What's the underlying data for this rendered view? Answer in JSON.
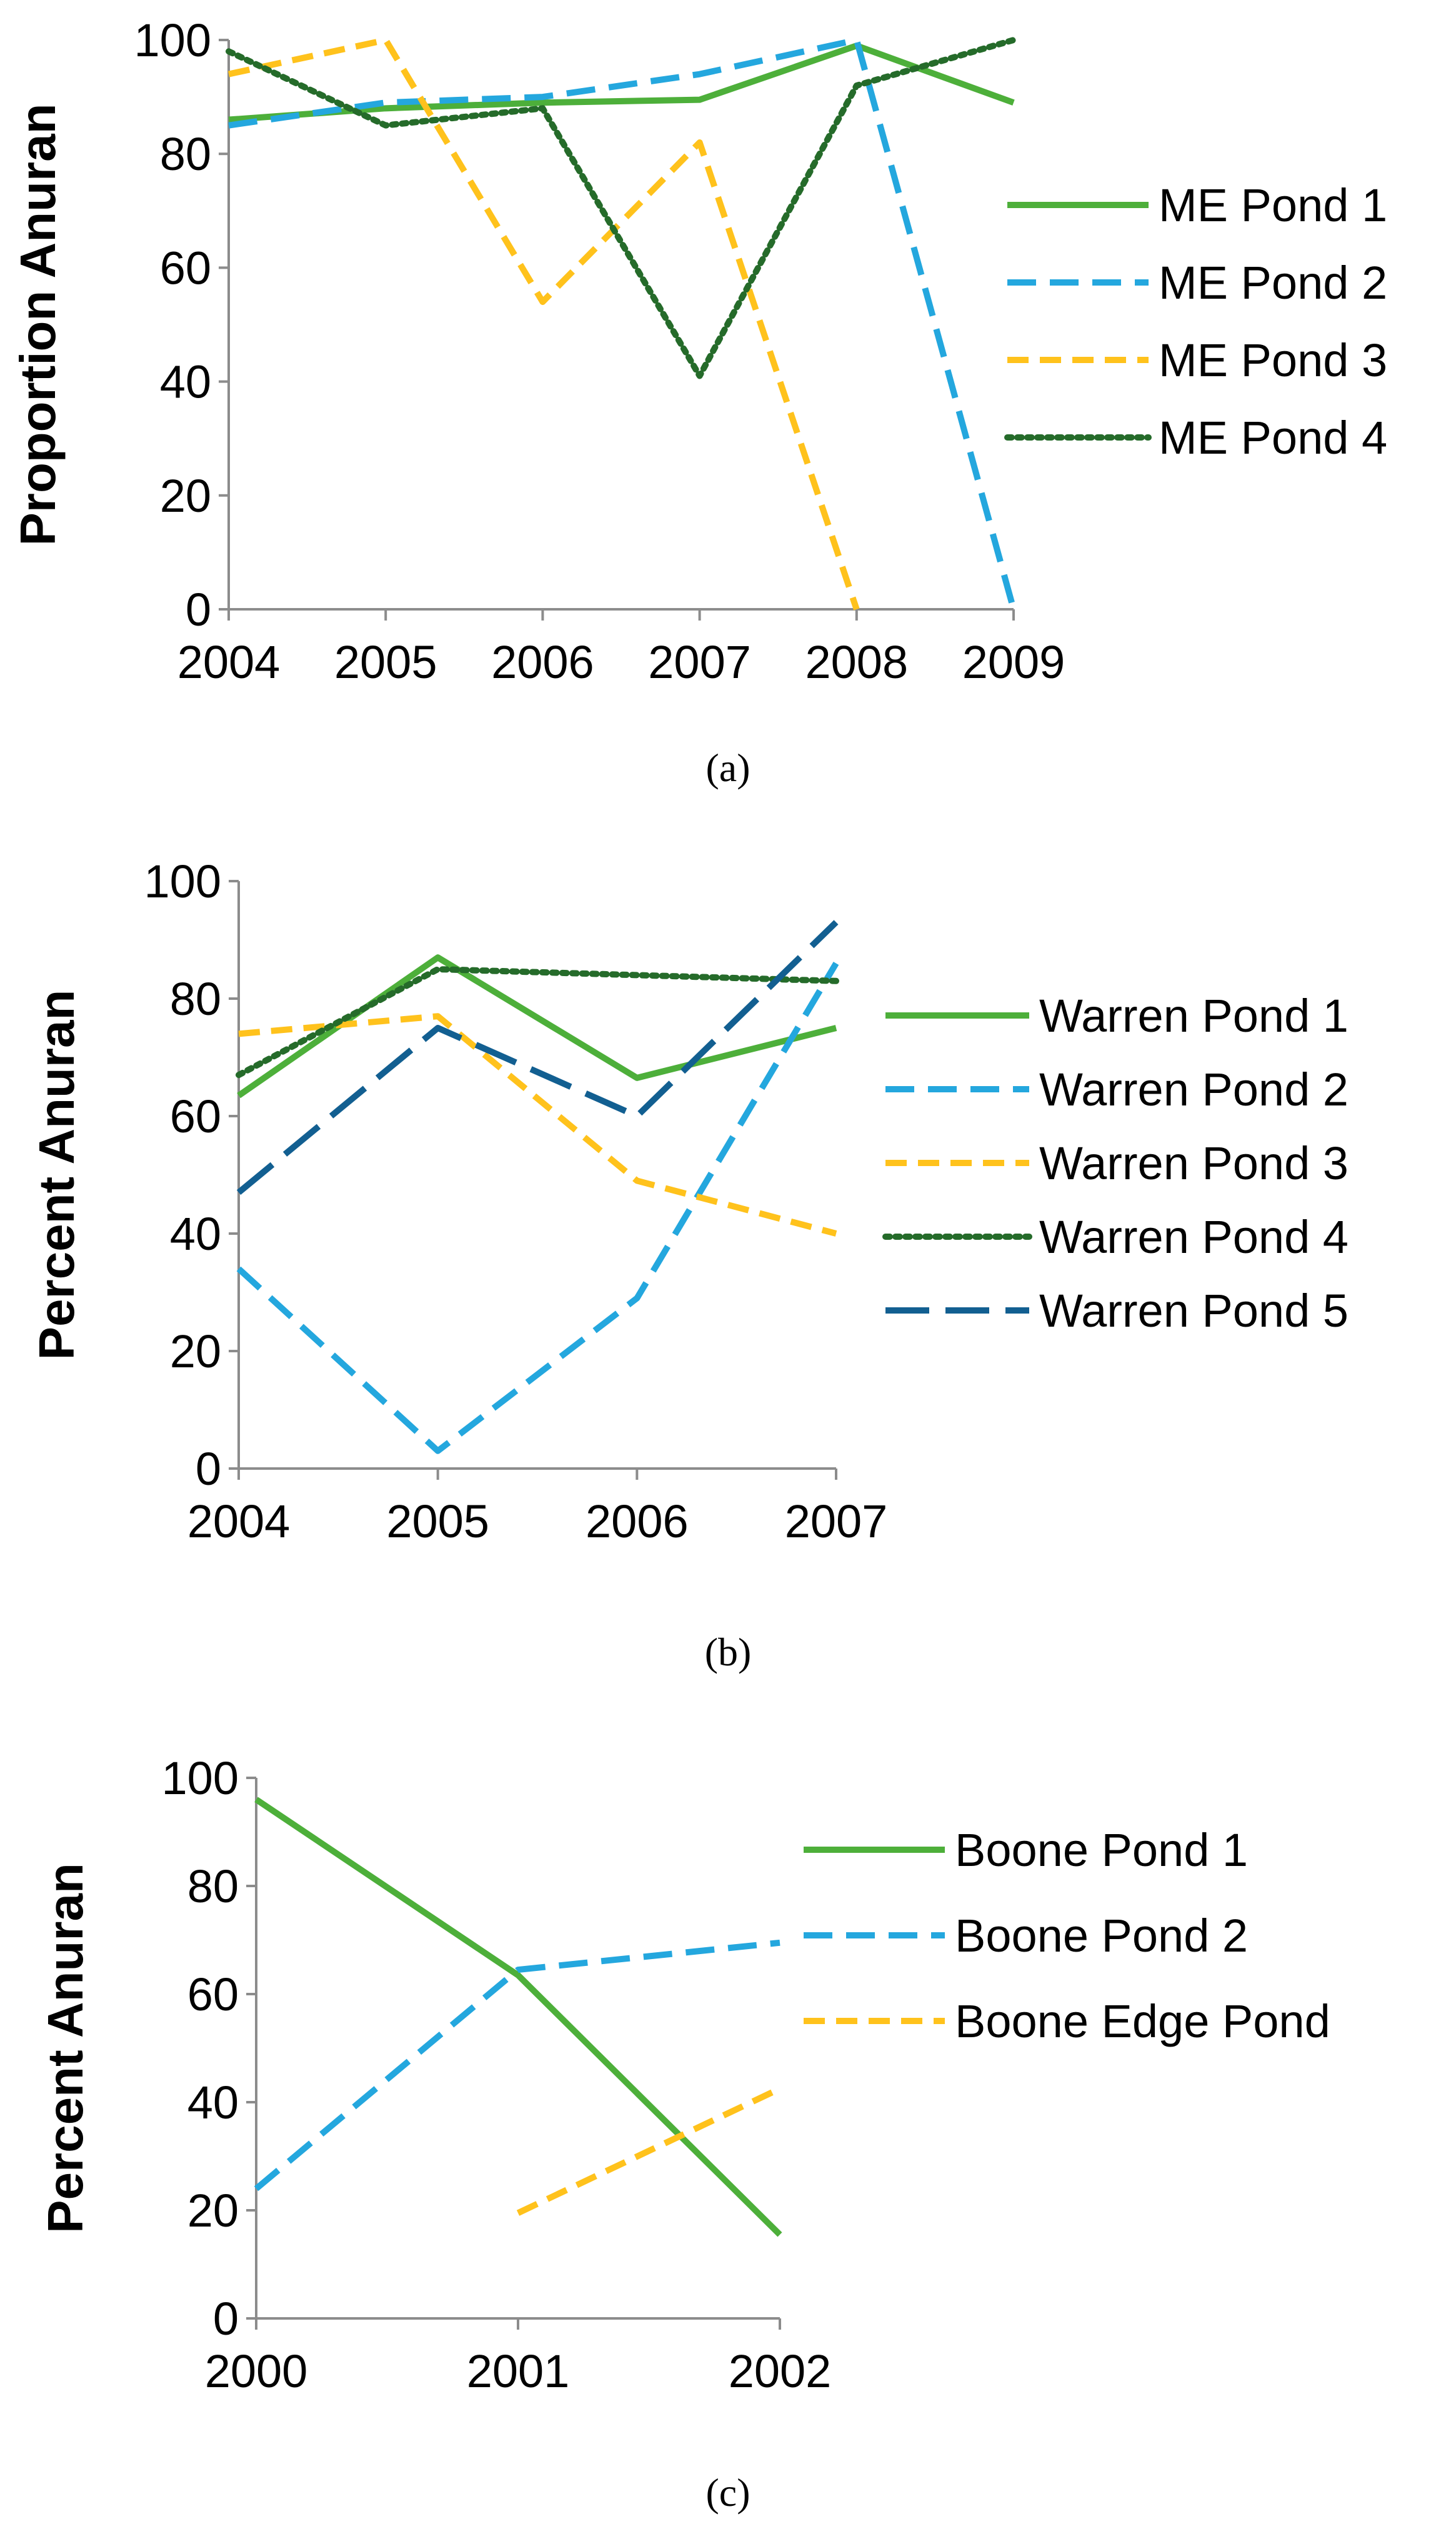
{
  "colors": {
    "green": "#4DAF3A",
    "blue": "#24A7DE",
    "yellow": "#FFC21C",
    "darkgreen": "#256B2A",
    "navy": "#125F91"
  },
  "chart_data": [
    {
      "type": "line",
      "caption": "(a)",
      "ylabel": "Proportion Anuran",
      "xlabel": "",
      "ylim": [
        0,
        100
      ],
      "yticks": [
        0,
        20,
        40,
        60,
        80,
        100
      ],
      "categories": [
        "2004",
        "2005",
        "2006",
        "2007",
        "2008",
        "2009"
      ],
      "legend_position": "right",
      "series": [
        {
          "name": "ME Pond 1",
          "color": "green",
          "dash": "solid",
          "values": [
            86,
            88,
            89,
            89.5,
            99,
            89
          ]
        },
        {
          "name": "ME Pond 2",
          "color": "blue",
          "dash": "dash",
          "values": [
            85,
            89,
            90,
            94,
            100,
            0
          ]
        },
        {
          "name": "ME Pond 3",
          "color": "yellow",
          "dash": "shortdash",
          "values": [
            94,
            100,
            54,
            82,
            0,
            null
          ]
        },
        {
          "name": "ME Pond 4",
          "color": "darkgreen",
          "dash": "dot",
          "values": [
            98,
            85,
            88,
            41,
            92,
            100
          ]
        }
      ]
    },
    {
      "type": "line",
      "caption": "(b)",
      "ylabel": "Percent Anuran",
      "xlabel": "",
      "ylim": [
        0,
        100
      ],
      "yticks": [
        0,
        20,
        40,
        60,
        80,
        100
      ],
      "categories": [
        "2004",
        "2005",
        "2006",
        "2007"
      ],
      "legend_position": "right",
      "series": [
        {
          "name": "Warren Pond 1",
          "color": "green",
          "dash": "solid",
          "values": [
            63.5,
            87,
            66.5,
            75
          ]
        },
        {
          "name": "Warren Pond 2",
          "color": "blue",
          "dash": "dash",
          "values": [
            34,
            3,
            29,
            86
          ]
        },
        {
          "name": "Warren Pond 3",
          "color": "yellow",
          "dash": "shortdash",
          "values": [
            74,
            77,
            49,
            40
          ]
        },
        {
          "name": "Warren Pond 4",
          "color": "darkgreen",
          "dash": "dot",
          "values": [
            67,
            85,
            84,
            83
          ]
        },
        {
          "name": "Warren Pond 5",
          "color": "navy",
          "dash": "longdash",
          "values": [
            47,
            75,
            60,
            93
          ]
        }
      ]
    },
    {
      "type": "line",
      "caption": "(c)",
      "ylabel": "Percent Anuran",
      "xlabel": "",
      "ylim": [
        0,
        100
      ],
      "yticks": [
        0,
        20,
        40,
        60,
        80,
        100
      ],
      "categories": [
        "2000",
        "2001",
        "2002"
      ],
      "legend_position": "right",
      "series": [
        {
          "name": "Boone Pond 1",
          "color": "green",
          "dash": "solid",
          "values": [
            96,
            63.5,
            15.5
          ]
        },
        {
          "name": "Boone Pond 2",
          "color": "blue",
          "dash": "dash",
          "values": [
            24,
            64.5,
            69.5
          ]
        },
        {
          "name": "Boone Edge Pond",
          "color": "yellow",
          "dash": "shortdash",
          "values": [
            null,
            19.5,
            42.5
          ]
        }
      ]
    }
  ]
}
